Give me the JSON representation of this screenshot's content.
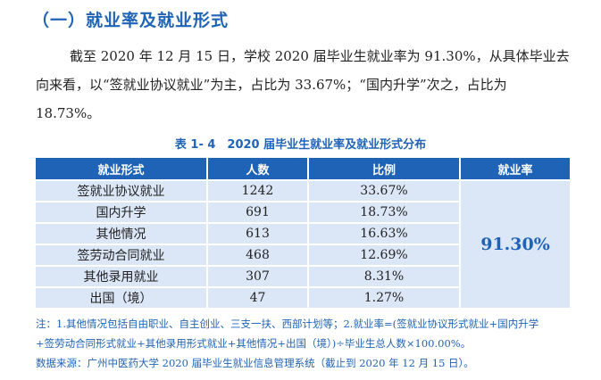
{
  "heading": "（一）就业率及就业形式",
  "paragraph": "截至 2020 年 12 月 15 日，学校 2020 届毕业生就业率为 91.30%，从具体毕业去向来看，以“签就业协议就业”为主，占比为 33.67%；“国内升学”次之，占比为 18.73%。",
  "table_caption": "表 1- 4　2020 届毕业生就业率及就业形式分布",
  "table": {
    "headers": [
      "就业形式",
      "人数",
      "比例",
      "就业率"
    ],
    "rows": [
      [
        "签就业协议就业",
        "1242",
        "33.67%"
      ],
      [
        "国内升学",
        "691",
        "18.73%"
      ],
      [
        "其他情况",
        "613",
        "16.63%"
      ],
      [
        "签劳动合同就业",
        "468",
        "12.69%"
      ],
      [
        "其他录用就业",
        "307",
        "8.31%"
      ],
      [
        "出国（境）",
        "47",
        "1.27%"
      ]
    ],
    "employment_rate": "91.30%"
  },
  "notes": {
    "line1": "注：1.其他情况包括自由职业、自主创业、三支一扶、西部计划等；2.就业率=(签就业协议形式就业+国内升学",
    "line2": "+签劳动合同形式就业+其他录用形式就业+其他情况+出国（境）)÷毕业生总人数×100.00%。",
    "source": "数据来源：广州中医药大学 2020 届毕业生就业信息管理系统（截止到 2020 年 12 月 15 日）。"
  },
  "colors": {
    "accent": "#1f63b6",
    "cell_bg": "#dbe6f7"
  }
}
